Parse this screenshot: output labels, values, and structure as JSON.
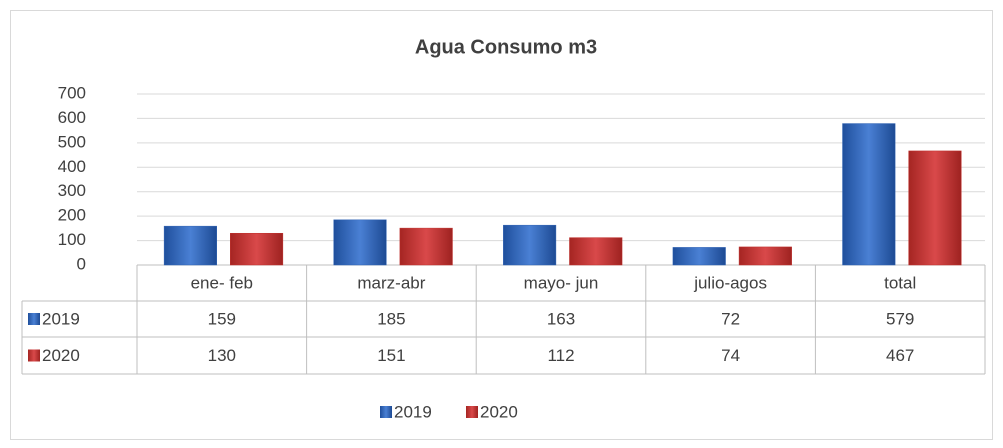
{
  "chart_data": {
    "type": "bar",
    "title": "Agua Consumo m3",
    "categories": [
      "ene- feb",
      "marz-abr",
      "mayo- jun",
      "julio-agos",
      "total"
    ],
    "series": [
      {
        "name": "2019",
        "color": "#2f62b3",
        "values": [
          159,
          185,
          163,
          72,
          579
        ]
      },
      {
        "name": "2020",
        "color": "#c0302c",
        "values": [
          130,
          151,
          112,
          74,
          467
        ]
      }
    ],
    "ylim": [
      0,
      700
    ],
    "yticks": [
      0,
      100,
      200,
      300,
      400,
      500,
      600,
      700
    ],
    "grid": true,
    "legend": "bottom"
  }
}
